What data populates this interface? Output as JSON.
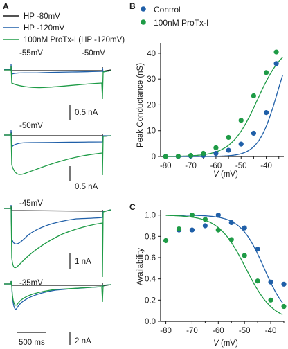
{
  "colors": {
    "hp80": "#1a1a1a",
    "hp120": "#1f5fa8",
    "protx": "#1e9b46",
    "control": "#1f5fa8",
    "protx_marker": "#1e9b46",
    "axis": "#1a1a1a"
  },
  "panel_a": {
    "label": "A",
    "legend": [
      "HP -80mV",
      "HP -120mV",
      "100nM ProTx-I (HP -120mV)"
    ],
    "traces": [
      {
        "voltage": "-55mV",
        "voltage2": "-50mV",
        "scale": "0.5 nA"
      },
      {
        "voltage": "-50mV",
        "scale": "0.5 nA"
      },
      {
        "voltage": "-45mV",
        "scale": "1 nA"
      },
      {
        "voltage": "-35mV",
        "scale": "2 nA"
      }
    ],
    "time_scale": "500 ms"
  },
  "chart_data": [
    {
      "type": "scatter",
      "panel": "B",
      "xlabel_italic": "V",
      "xlabel_unit": " (mV)",
      "ylabel": "Peak Conductance (nS)",
      "xlim": [
        -82,
        -33
      ],
      "ylim": [
        0,
        44
      ],
      "x_ticks": [
        -80,
        -70,
        -60,
        -50,
        -40
      ],
      "y_ticks": [
        0,
        10,
        20,
        30,
        40
      ],
      "legend_position": "top-left",
      "series": [
        {
          "name": "Control",
          "x": [
            -80,
            -75,
            -70,
            -65,
            -60,
            -55,
            -50,
            -45,
            -40,
            -36
          ],
          "y": [
            0,
            0,
            0.2,
            0.4,
            1.2,
            2.4,
            4.8,
            9.0,
            17.0,
            36.0
          ]
        },
        {
          "name": "100nM ProTx-I",
          "x": [
            -80,
            -75,
            -70,
            -65,
            -60,
            -55,
            -50,
            -45,
            -40,
            -36
          ],
          "y": [
            0,
            0.1,
            0.4,
            1.2,
            3.4,
            7.4,
            14.0,
            23.5,
            32.5,
            40.5
          ]
        }
      ]
    },
    {
      "type": "scatter",
      "panel": "C",
      "xlabel_italic": "V",
      "xlabel_unit": " (mV)",
      "ylabel": "Availability",
      "xlim": [
        -82,
        -35
      ],
      "ylim": [
        0,
        1.05
      ],
      "x_ticks": [
        -80,
        -70,
        -60,
        -50,
        -40
      ],
      "y_ticks": [
        0.0,
        0.2,
        0.4,
        0.6,
        0.8,
        1.0
      ],
      "series": [
        {
          "name": "Control",
          "x": [
            -75,
            -70,
            -65,
            -60,
            -55,
            -50,
            -45,
            -40,
            -35
          ],
          "y": [
            0.86,
            0.86,
            0.9,
            1.0,
            0.93,
            0.88,
            0.68,
            0.37,
            0.35
          ]
        },
        {
          "name": "100nM ProTx-I",
          "x": [
            -80,
            -75,
            -70,
            -65,
            -60,
            -55,
            -50,
            -45,
            -40,
            -35
          ],
          "y": [
            0.76,
            0.87,
            1.0,
            0.96,
            0.86,
            0.77,
            0.62,
            0.38,
            0.2,
            0.14
          ]
        }
      ]
    }
  ]
}
